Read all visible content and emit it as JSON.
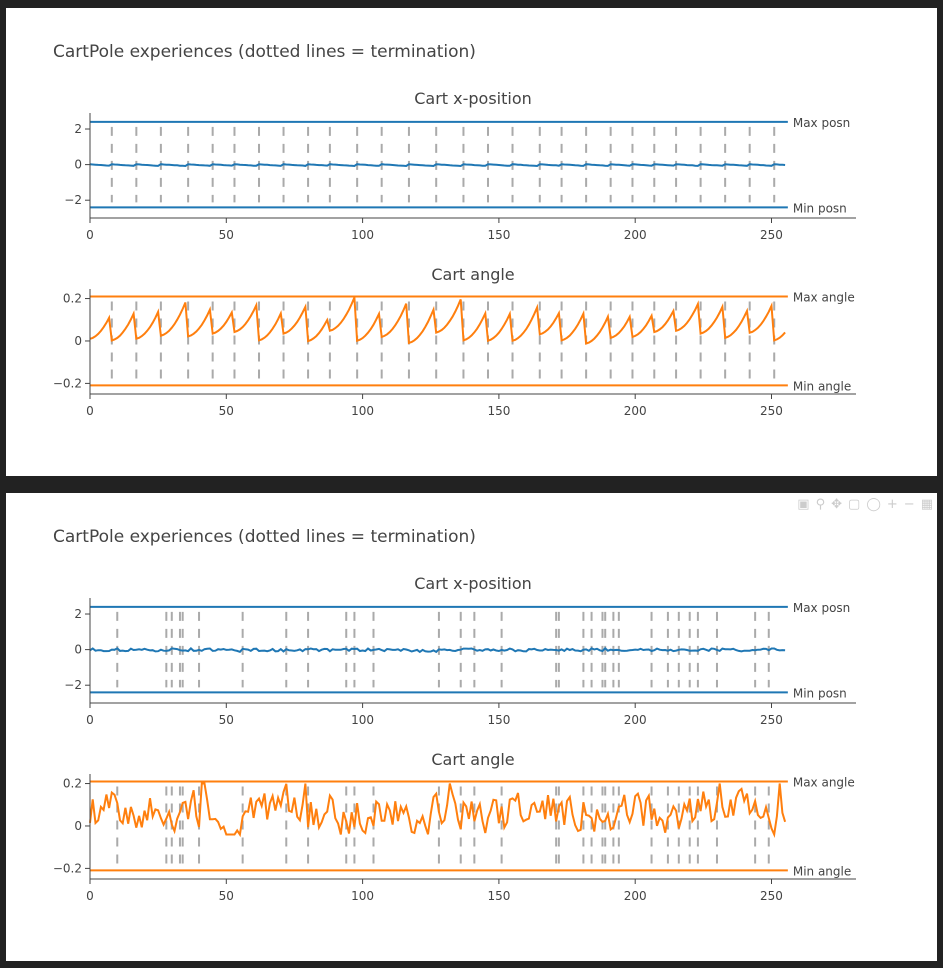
{
  "figures": [
    {
      "title": "CartPole experiences (dotted lines = termination)",
      "show_modebar": false,
      "subplots": [
        {
          "title": "Cart x-position",
          "yticks": [
            2,
            0,
            -2
          ],
          "ytick_labels": [
            "2",
            "0",
            "−2"
          ],
          "ylim": [
            -3.0,
            2.9
          ],
          "color": "#1f77b4",
          "max_value": 2.4,
          "max_label": "Max posn",
          "min_value": -2.4,
          "min_label": "Min posn"
        },
        {
          "title": "Cart angle",
          "yticks": [
            0.2,
            0,
            -0.2
          ],
          "ytick_labels": [
            "0.2",
            "0",
            "−0.2"
          ],
          "ylim": [
            -0.25,
            0.245
          ],
          "color": "#ff7f0e",
          "max_value": 0.2095,
          "max_label": "Max angle",
          "min_value": -0.2095,
          "min_label": "Min angle"
        }
      ],
      "xlim": [
        0,
        281
      ],
      "xticks": [
        0,
        50,
        100,
        150,
        200,
        250
      ],
      "terminations": [
        8,
        17,
        26,
        36,
        45,
        53,
        62,
        71,
        80,
        88,
        98,
        107,
        117,
        127,
        137,
        146,
        155,
        165,
        173,
        182,
        191,
        199,
        207,
        215,
        224,
        233,
        242,
        251
      ]
    },
    {
      "title": "CartPole experiences (dotted lines = termination)",
      "show_modebar": true,
      "subplots": [
        {
          "title": "Cart x-position",
          "yticks": [
            2,
            0,
            -2
          ],
          "ytick_labels": [
            "2",
            "0",
            "−2"
          ],
          "ylim": [
            -3.0,
            2.9
          ],
          "color": "#1f77b4",
          "max_value": 2.4,
          "max_label": "Max posn",
          "min_value": -2.4,
          "min_label": "Min posn"
        },
        {
          "title": "Cart angle",
          "yticks": [
            0.2,
            0,
            -0.2
          ],
          "ytick_labels": [
            "0.2",
            "0",
            "−0.2"
          ],
          "ylim": [
            -0.25,
            0.245
          ],
          "color": "#ff7f0e",
          "max_value": 0.2095,
          "max_label": "Max angle",
          "min_value": -0.2095,
          "min_label": "Min angle"
        }
      ],
      "xlim": [
        0,
        281
      ],
      "xticks": [
        0,
        50,
        100,
        150,
        200,
        250
      ],
      "terminations": [
        10,
        28,
        30,
        33,
        34,
        40,
        56,
        72,
        80,
        94,
        97,
        104,
        128,
        136,
        141,
        151,
        171,
        172,
        181,
        184,
        188,
        189,
        192,
        194,
        206,
        212,
        216,
        220,
        223,
        230,
        244,
        249
      ]
    }
  ],
  "chart_data": [
    {
      "type": "line",
      "title": "CartPole experiences (dotted lines = termination)",
      "subplots": [
        "Cart x-position",
        "Cart angle"
      ],
      "x_range": [
        0,
        255
      ],
      "series": [
        {
          "name": "Max posn",
          "values": [
            2.4
          ]
        },
        {
          "name": "Min posn",
          "values": [
            -2.4
          ]
        },
        {
          "name": "Max angle",
          "values": [
            0.2095
          ]
        },
        {
          "name": "Min angle",
          "values": [
            -0.2095
          ]
        }
      ],
      "termination_steps": [
        8,
        17,
        26,
        36,
        45,
        53,
        62,
        71,
        80,
        88,
        98,
        107,
        117,
        127,
        137,
        146,
        155,
        165,
        173,
        182,
        191,
        199,
        207,
        215,
        224,
        233,
        242,
        251
      ],
      "x_position_range": [
        -0.12,
        0.1
      ],
      "angle_range": [
        -0.05,
        0.21
      ],
      "legend": "inline labels at right"
    },
    {
      "type": "line",
      "title": "CartPole experiences (dotted lines = termination)",
      "subplots": [
        "Cart x-position",
        "Cart angle"
      ],
      "x_range": [
        0,
        255
      ],
      "series": [
        {
          "name": "Max posn",
          "values": [
            2.4
          ]
        },
        {
          "name": "Min posn",
          "values": [
            -2.4
          ]
        },
        {
          "name": "Max angle",
          "values": [
            0.2095
          ]
        },
        {
          "name": "Min angle",
          "values": [
            -0.2095
          ]
        }
      ],
      "termination_steps": [
        10,
        28,
        30,
        33,
        34,
        40,
        56,
        72,
        80,
        94,
        97,
        104,
        128,
        136,
        141,
        151,
        171,
        172,
        181,
        184,
        188,
        189,
        192,
        194,
        206,
        212,
        216,
        220,
        223,
        230,
        244,
        249
      ],
      "x_position_range": [
        -0.1,
        0.08
      ],
      "angle_range": [
        -0.04,
        0.2
      ],
      "legend": "inline labels at right"
    }
  ]
}
